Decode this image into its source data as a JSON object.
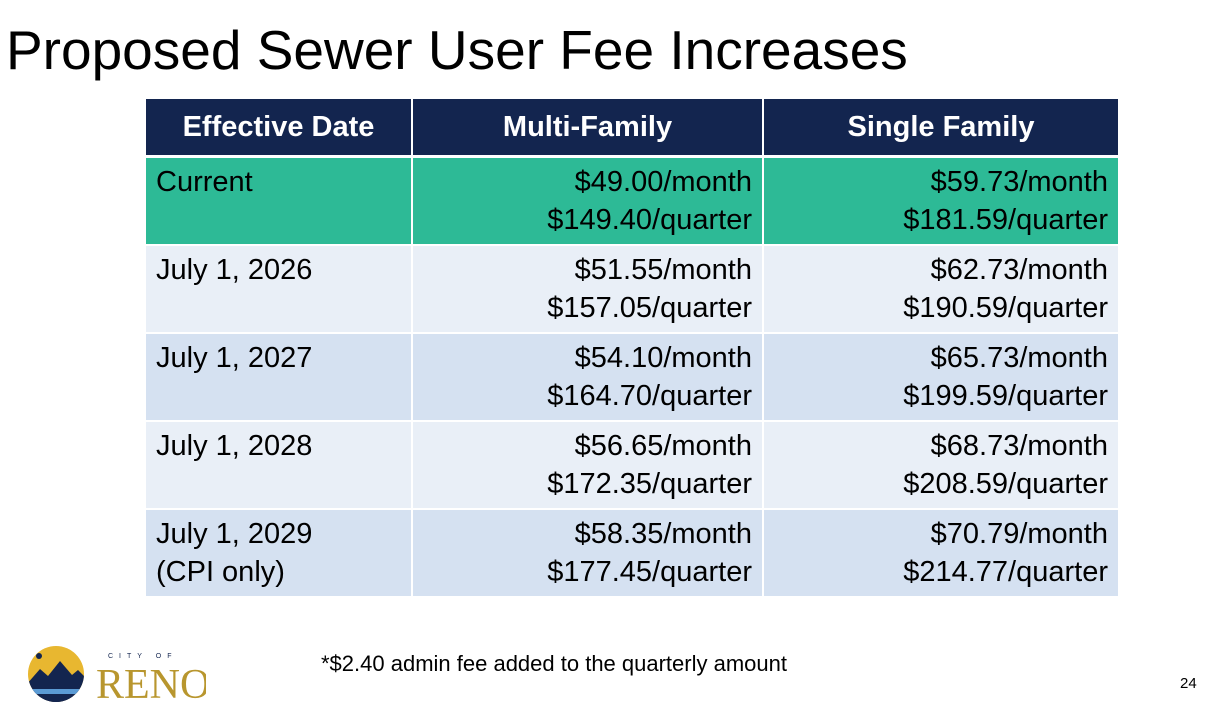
{
  "slide": {
    "title": "Proposed Sewer User Fee Increases",
    "footnote": "*$2.40 admin fee added to the quarterly amount",
    "page_number": "24",
    "logo": {
      "small_text": "CITY OF",
      "wordmark": "RENO",
      "icon": "mountain-sun-logo-icon"
    }
  },
  "table": {
    "headers": [
      "Effective Date",
      "Multi-Family",
      "Single Family"
    ],
    "rows": [
      {
        "date": [
          "Current",
          ""
        ],
        "multi": [
          "$49.00/month",
          "$149.40/quarter"
        ],
        "single": [
          "$59.73/month",
          "$181.59/quarter"
        ]
      },
      {
        "date": [
          "July 1, 2026",
          ""
        ],
        "multi": [
          "$51.55/month",
          "$157.05/quarter"
        ],
        "single": [
          "$62.73/month",
          "$190.59/quarter"
        ]
      },
      {
        "date": [
          "July 1, 2027",
          ""
        ],
        "multi": [
          "$54.10/month",
          "$164.70/quarter"
        ],
        "single": [
          "$65.73/month",
          "$199.59/quarter"
        ]
      },
      {
        "date": [
          "July 1, 2028",
          ""
        ],
        "multi": [
          "$56.65/month",
          "$172.35/quarter"
        ],
        "single": [
          "$68.73/month",
          "$208.59/quarter"
        ]
      },
      {
        "date": [
          "July 1, 2029",
          "(CPI only)"
        ],
        "multi": [
          "$58.35/month",
          "$177.45/quarter"
        ],
        "single": [
          "$70.79/month",
          "$214.77/quarter"
        ]
      }
    ]
  },
  "colors": {
    "header_bg": "#13254f",
    "current_row_bg": "#2dba96",
    "row_light_bg": "#e9eff7",
    "row_mid_bg": "#d5e1f1",
    "logo_gold": "#b8962e",
    "logo_navy": "#13254f",
    "logo_water": "#5b9bd5"
  }
}
